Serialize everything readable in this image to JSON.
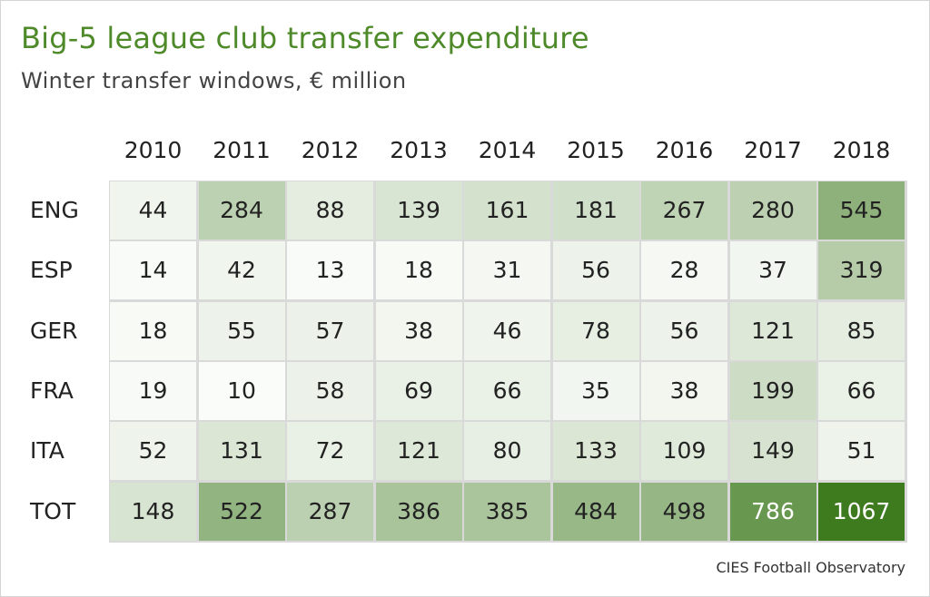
{
  "title": "Big-5 league club transfer expenditure",
  "subtitle": "Winter transfer windows, € million",
  "source": "CIES Football Observatory",
  "colors": {
    "title": "#4e8a2a",
    "scale_low": "#ffffff",
    "scale_high": "#3e7a1e",
    "light_text": "#ffffff",
    "dark_text": "#222222"
  },
  "chart_data": {
    "type": "heatmap",
    "title": "Big-5 league club transfer expenditure",
    "subtitle": "Winter transfer windows, € million",
    "x": [
      "2010",
      "2011",
      "2012",
      "2013",
      "2014",
      "2015",
      "2016",
      "2017",
      "2018"
    ],
    "y": [
      "ENG",
      "ESP",
      "GER",
      "FRA",
      "ITA",
      "TOT"
    ],
    "values": [
      [
        44,
        284,
        88,
        139,
        161,
        181,
        267,
        280,
        545
      ],
      [
        14,
        42,
        13,
        18,
        31,
        56,
        28,
        37,
        319
      ],
      [
        18,
        55,
        57,
        38,
        46,
        78,
        56,
        121,
        85
      ],
      [
        19,
        10,
        58,
        69,
        66,
        35,
        38,
        199,
        66
      ],
      [
        52,
        131,
        72,
        121,
        80,
        133,
        109,
        149,
        51
      ],
      [
        148,
        522,
        287,
        386,
        385,
        484,
        498,
        786,
        1067
      ]
    ],
    "legend": false,
    "grid": true
  }
}
